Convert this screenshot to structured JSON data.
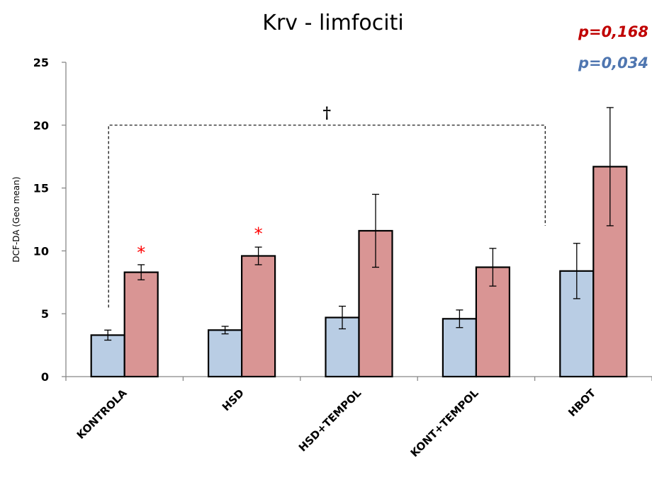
{
  "chart_data": {
    "type": "bar",
    "title": "Krv - limfociti",
    "ylabel": "DCF-DA (Geo mean)",
    "xlabel": "",
    "ylim": [
      0,
      25
    ],
    "yticks": [
      0,
      5,
      10,
      15,
      20,
      25
    ],
    "categories": [
      "KONTROLA",
      "HSD",
      "HSD+TEMPOL",
      "KONT+TEMPOL",
      "HBOT"
    ],
    "series": [
      {
        "color": "#b9cde4",
        "values": [
          3.3,
          3.7,
          4.7,
          4.6,
          8.4
        ],
        "errors": [
          0.4,
          0.3,
          0.9,
          0.7,
          2.2
        ]
      },
      {
        "color": "#d99594",
        "values": [
          8.3,
          9.6,
          11.6,
          8.7,
          16.7
        ],
        "errors": [
          0.6,
          0.7,
          2.9,
          1.5,
          4.7
        ]
      }
    ],
    "significance_marks": [
      {
        "category": "KONTROLA",
        "series": 1,
        "text": "*",
        "y": 10.3
      },
      {
        "category": "HSD",
        "series": 1,
        "text": "*",
        "y": 11.8
      }
    ],
    "bracket": {
      "from": "KONTROLA",
      "to": "HBOT",
      "y": 20.0,
      "text": "†"
    },
    "p_values": [
      {
        "text": "p=0,168",
        "color": "#c00000"
      },
      {
        "text": "p=0,034",
        "color": "#4f76b0"
      }
    ],
    "grid": false
  }
}
